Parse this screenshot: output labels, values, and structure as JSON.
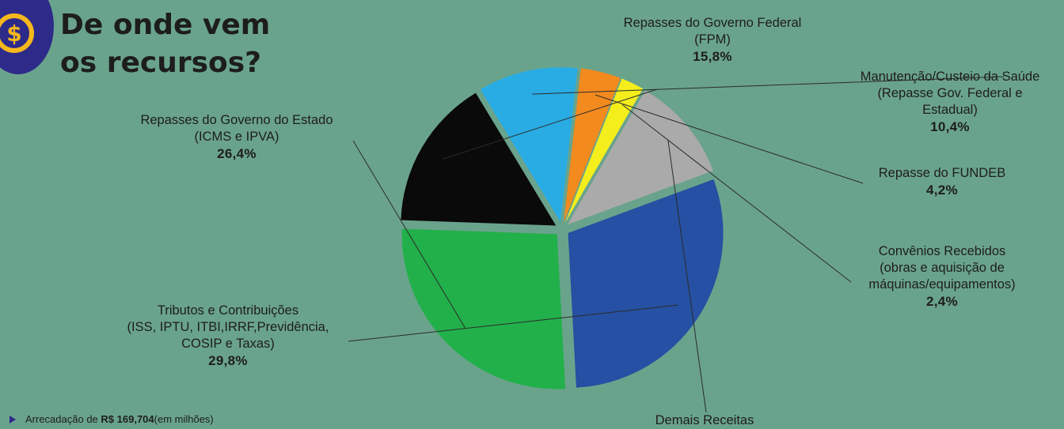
{
  "title": {
    "line1": "De onde vem",
    "line2": "os recursos?"
  },
  "footer": {
    "prefix": "Arrecadação de ",
    "amount": "R$ 169,704",
    "suffix": "(em milhões)"
  },
  "chart_data": {
    "type": "pie",
    "slices": [
      {
        "name_lines": [
          "Repasses do Governo Federal",
          "(FPM)"
        ],
        "value": 15.8,
        "label": "15,8%",
        "color": "#0a0a0a"
      },
      {
        "name_lines": [
          "Manutenção/Custeio da Saúde",
          "(Repasse Gov. Federal e",
          "Estadual)"
        ],
        "value": 10.4,
        "label": "10,4%",
        "color": "#29ace4"
      },
      {
        "name_lines": [
          "Repasse do FUNDEB"
        ],
        "value": 4.2,
        "label": "4,2%",
        "color": "#f28a1e"
      },
      {
        "name_lines": [
          "Convênios Recebidos",
          "(obras e aquisição de",
          "máquinas/equipamentos)"
        ],
        "value": 2.4,
        "label": "2,4%",
        "color": "#f4ee1c"
      },
      {
        "name_lines": [
          "Demais Receitas"
        ],
        "value": 11.0,
        "label": "",
        "color": "#aaaaaa"
      },
      {
        "name_lines": [
          "Tributos e Contribuições",
          "(ISS, IPTU, ITBI,IRRF,Previdência,",
          "COSIP e Taxas)"
        ],
        "value": 29.8,
        "label": "29,8%",
        "color": "#2550a3"
      },
      {
        "name_lines": [
          "Repasses do Governo do Estado",
          "(ICMS e IPVA)"
        ],
        "value": 26.4,
        "label": "26,4%",
        "color": "#22b04a"
      }
    ],
    "legend": "none"
  },
  "colors": {
    "background": "#6aa38c",
    "logo": "#2e2a8a",
    "logo_accent": "#f5b81c",
    "leader_line": "#2b2b2b"
  }
}
